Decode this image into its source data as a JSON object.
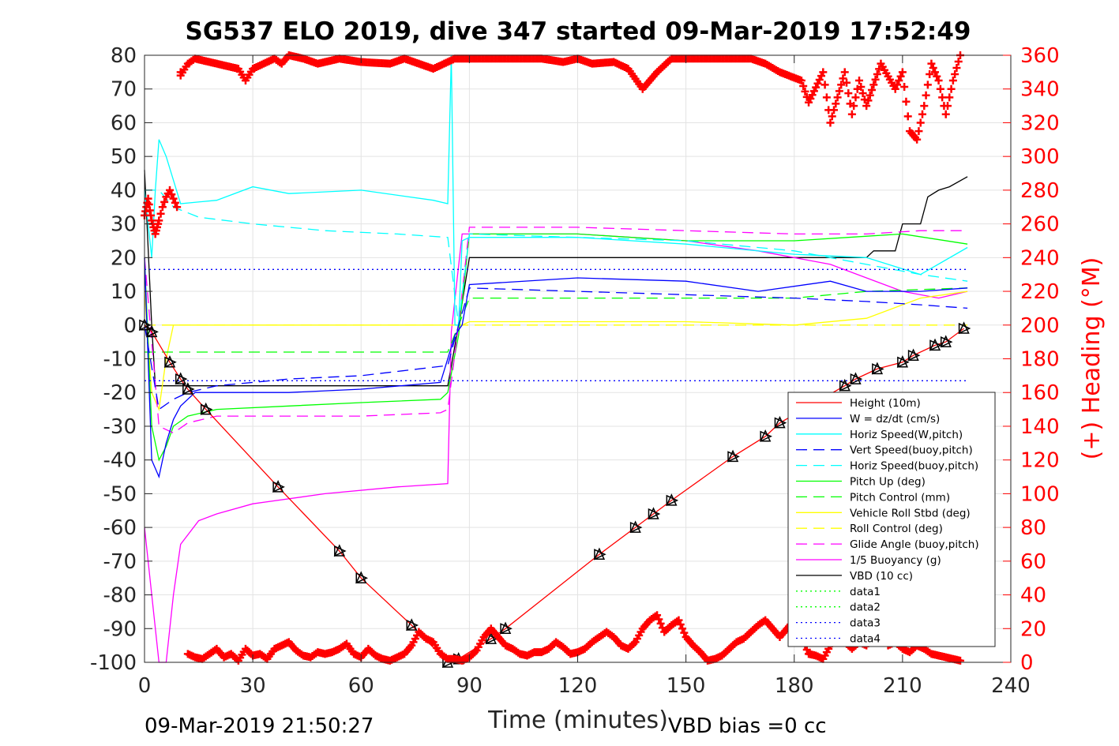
{
  "chart_data": {
    "type": "line",
    "title": "SG537 ELO 2019, dive 347 started 09-Mar-2019 17:52:49",
    "xlabel": "Time (minutes)",
    "ylabel": "",
    "y2label": "(+) Heading (°M)",
    "xlim": [
      0,
      240
    ],
    "ylim": [
      -100,
      80
    ],
    "y2lim": [
      0,
      360
    ],
    "x_ticks": [
      "0",
      "30",
      "60",
      "90",
      "120",
      "150",
      "180",
      "210",
      "240"
    ],
    "y_ticks": [
      "80",
      "70",
      "60",
      "50",
      "40",
      "30",
      "20",
      "10",
      "0",
      "-10",
      "-20",
      "-30",
      "-40",
      "-50",
      "-60",
      "-70",
      "-80",
      "-90",
      "-100"
    ],
    "y2_ticks": [
      "360",
      "340",
      "320",
      "300",
      "280",
      "260",
      "240",
      "220",
      "200",
      "180",
      "160",
      "140",
      "120",
      "100",
      "80",
      "60",
      "40",
      "20",
      "0"
    ],
    "grid": true,
    "legend_position": "bottom-right",
    "footer_left": "09-Mar-2019 21:50:27",
    "footer_right": "VBD bias =0 cc",
    "colors": {
      "height": "#ff0000",
      "w": "#0000ff",
      "horiz": "#00ffff",
      "pitch": "#00ff00",
      "roll": "#ffff00",
      "glide": "#ff00ff",
      "buoy": "#ff00ff",
      "vbd": "#000000",
      "data1": "#00ff00",
      "data3": "#0000ff",
      "heading": "#ff0000",
      "axis_right": "#ff0000"
    },
    "series": [
      {
        "name": "Height (10m)",
        "x": [
          0,
          2,
          7,
          10,
          12,
          17,
          37,
          54,
          60,
          74,
          84,
          87,
          96,
          100,
          126,
          136,
          141,
          146,
          163,
          172,
          176,
          194,
          197,
          203,
          210,
          213,
          219,
          222,
          227
        ],
        "y": [
          0,
          -2,
          -11,
          -16,
          -19,
          -25,
          -48,
          -67,
          -75,
          -89,
          -100,
          -99,
          -93,
          -90,
          -68,
          -60,
          -56,
          -52,
          -39,
          -33,
          -29,
          -18,
          -16,
          -13,
          -11,
          -9,
          -6,
          -5,
          -1
        ]
      },
      {
        "name": "W = dz/dt (cm/s)",
        "x": [
          0,
          2,
          4,
          6,
          8,
          10,
          14,
          20,
          40,
          60,
          82,
          84,
          86,
          88,
          90,
          120,
          150,
          170,
          190,
          200,
          215,
          228
        ],
        "y": [
          20,
          -40,
          -45,
          -35,
          -28,
          -24,
          -20,
          -20,
          -20,
          -19,
          -17,
          -10,
          -3,
          0,
          12,
          14,
          13,
          10,
          13,
          10,
          10,
          11
        ]
      },
      {
        "name": "Horiz Speed(W,pitch)",
        "x": [
          0,
          2,
          3,
          4,
          6,
          10,
          20,
          30,
          40,
          60,
          80,
          84,
          85,
          86,
          87,
          88,
          90,
          120,
          150,
          180,
          200,
          215,
          228
        ],
        "y": [
          40,
          20,
          40,
          55,
          50,
          36,
          37,
          41,
          39,
          40,
          37,
          36,
          80,
          0,
          0,
          25,
          26,
          26,
          24,
          21,
          20,
          15,
          23
        ]
      },
      {
        "name": "Vert Speed(buoy,pitch)",
        "x": [
          0,
          4,
          8,
          12,
          20,
          40,
          60,
          84,
          87,
          90,
          120,
          150,
          180,
          200,
          215,
          228
        ],
        "y": [
          0,
          -25,
          -22,
          -20,
          -18,
          -16,
          -15,
          -12,
          0,
          11,
          10,
          9,
          8,
          7,
          6,
          5
        ]
      },
      {
        "name": "Horiz Speed(buoy,pitch)",
        "x": [
          0,
          4,
          8,
          15,
          30,
          50,
          70,
          84,
          87,
          90,
          120,
          150,
          180,
          200,
          215,
          228
        ],
        "y": [
          40,
          40,
          35,
          32,
          30,
          28,
          27,
          26,
          0,
          27,
          26,
          25,
          22,
          18,
          15,
          13
        ]
      },
      {
        "name": "Pitch Up (deg)",
        "x": [
          0,
          2,
          4,
          6,
          8,
          12,
          20,
          40,
          60,
          82,
          84,
          87,
          90,
          120,
          150,
          180,
          195,
          210,
          228
        ],
        "y": [
          20,
          -30,
          -40,
          -36,
          -30,
          -27,
          -25,
          -24,
          -23,
          -22,
          -20,
          -3,
          27,
          27,
          25,
          25,
          26,
          27,
          24
        ]
      },
      {
        "name": "Pitch Control (mm)",
        "x": [
          0,
          10,
          84,
          87,
          90,
          120,
          150,
          180,
          200,
          228
        ],
        "y": [
          -8,
          -8,
          -8,
          0,
          8,
          8,
          8,
          8,
          10,
          11
        ]
      },
      {
        "name": "Vehicle Roll Stbd (deg)",
        "x": [
          0,
          2,
          4,
          6,
          8,
          10,
          20,
          40,
          60,
          84,
          88,
          90,
          120,
          150,
          180,
          200,
          215,
          228
        ],
        "y": [
          10,
          -20,
          -25,
          -10,
          0,
          0,
          0,
          0,
          0,
          0,
          0,
          1,
          1,
          1,
          0,
          2,
          8,
          10
        ]
      },
      {
        "name": "Roll Control (deg)",
        "x": [
          0,
          10,
          40,
          84,
          87,
          90,
          130,
          170,
          200,
          228
        ],
        "y": [
          0,
          0,
          0,
          0,
          0,
          0,
          0,
          0,
          0,
          0
        ]
      },
      {
        "name": "Glide Angle (buoy,pitch)",
        "x": [
          0,
          4,
          8,
          12,
          20,
          40,
          60,
          82,
          84,
          87,
          90,
          120,
          150,
          180,
          200,
          215,
          228
        ],
        "y": [
          20,
          -30,
          -32,
          -29,
          -27,
          -27,
          -27,
          -26,
          -25,
          0,
          29,
          29,
          28,
          27,
          27,
          28,
          28
        ]
      },
      {
        "name": "1/5 Buoyancy (g)",
        "x": [
          0,
          4,
          6,
          8,
          10,
          15,
          20,
          30,
          50,
          70,
          84,
          85,
          88,
          120,
          150,
          170,
          190,
          200,
          210,
          220,
          228
        ],
        "y": [
          -60,
          -100,
          -100,
          -80,
          -65,
          -58,
          -56,
          -53,
          -50,
          -48,
          -47,
          -2,
          27,
          27,
          25,
          22,
          18,
          14,
          10,
          8,
          10
        ]
      },
      {
        "name": "VBD (10 cc)",
        "x": [
          0,
          2,
          3,
          10,
          30,
          60,
          84,
          87,
          90,
          120,
          150,
          187,
          188,
          200,
          202,
          208,
          210,
          215,
          217,
          220,
          223,
          228
        ],
        "y": [
          46,
          0,
          -18,
          -18,
          -18,
          -18,
          -18,
          0,
          20,
          20,
          20,
          20,
          20,
          20,
          22,
          22,
          30,
          30,
          38,
          40,
          41,
          44
        ]
      },
      {
        "name": "data1",
        "x": [],
        "y": []
      },
      {
        "name": "data2",
        "x": [],
        "y": []
      },
      {
        "name": "data3",
        "x": [
          0,
          228
        ],
        "y": [
          16.5,
          16.5
        ]
      },
      {
        "name": "data4",
        "x": [
          0,
          228
        ],
        "y": [
          -16.5,
          -16.5
        ]
      }
    ],
    "heading_series": {
      "axis": "right",
      "x": [
        0,
        0.5,
        1,
        1.5,
        2,
        2.5,
        3,
        3.5,
        4,
        5,
        6,
        7,
        8,
        9,
        10,
        12,
        14,
        16,
        18,
        20,
        22,
        24,
        26,
        28,
        30,
        32,
        34,
        36,
        38,
        40,
        42,
        44,
        46,
        48,
        50,
        52,
        54,
        56,
        58,
        60,
        62,
        64,
        66,
        68,
        70,
        72,
        74,
        76,
        78,
        80,
        82,
        84,
        86,
        88,
        90,
        92,
        94,
        96,
        98,
        100,
        102,
        104,
        106,
        108,
        110,
        112,
        114,
        116,
        118,
        120,
        122,
        124,
        126,
        128,
        130,
        132,
        134,
        136,
        138,
        140,
        142,
        144,
        146,
        148,
        150,
        152,
        154,
        156,
        158,
        160,
        162,
        164,
        166,
        168,
        170,
        172,
        174,
        176,
        178,
        180,
        182,
        184,
        186,
        188,
        190,
        192,
        194,
        196,
        198,
        200,
        202,
        204,
        206,
        208,
        210,
        212,
        214,
        216,
        218,
        220,
        222,
        224,
        226
      ],
      "y": [
        265,
        270,
        275,
        268,
        262,
        258,
        254,
        258,
        262,
        270,
        276,
        280,
        275,
        270,
        350,
        5,
        3,
        2,
        5,
        8,
        3,
        5,
        1,
        8,
        4,
        5,
        2,
        8,
        10,
        12,
        7,
        4,
        3,
        6,
        5,
        6,
        8,
        11,
        5,
        3,
        8,
        4,
        2,
        1,
        3,
        5,
        10,
        18,
        14,
        12,
        5,
        2,
        2,
        1,
        3,
        7,
        15,
        20,
        15,
        10,
        8,
        5,
        4,
        6,
        6,
        8,
        12,
        9,
        5,
        6,
        8,
        12,
        15,
        18,
        15,
        10,
        8,
        12,
        20,
        25,
        28,
        18,
        22,
        25,
        15,
        10,
        6,
        1,
        2,
        4,
        8,
        12,
        14,
        18,
        22,
        25,
        20,
        15,
        20,
        25,
        15,
        5,
        4,
        2,
        10,
        15,
        12,
        8,
        12,
        10,
        15,
        20,
        10,
        12,
        8,
        6,
        10,
        8,
        5,
        4,
        3,
        2,
        1
      ]
    },
    "heading_top_series": {
      "axis": "right",
      "x": [
        10,
        12,
        14,
        20,
        26,
        28,
        30,
        36,
        38,
        40,
        44,
        48,
        54,
        60,
        68,
        72,
        80,
        86,
        92,
        96,
        102,
        110,
        116,
        120,
        124,
        130,
        134,
        138,
        142,
        146,
        154,
        160,
        168,
        172,
        176,
        182,
        184,
        188,
        190,
        192,
        194,
        196,
        198,
        200,
        204,
        208,
        210,
        212,
        214,
        216,
        218,
        220,
        222,
        224,
        226
      ],
      "y": [
        348,
        355,
        358,
        355,
        352,
        345,
        352,
        358,
        355,
        360,
        358,
        355,
        358,
        356,
        355,
        358,
        352,
        358,
        358,
        358,
        358,
        358,
        356,
        358,
        355,
        356,
        352,
        340,
        350,
        358,
        358,
        358,
        358,
        355,
        350,
        345,
        332,
        350,
        320,
        335,
        350,
        325,
        345,
        330,
        355,
        340,
        350,
        315,
        310,
        330,
        355,
        345,
        325,
        345,
        360
      ]
    }
  }
}
